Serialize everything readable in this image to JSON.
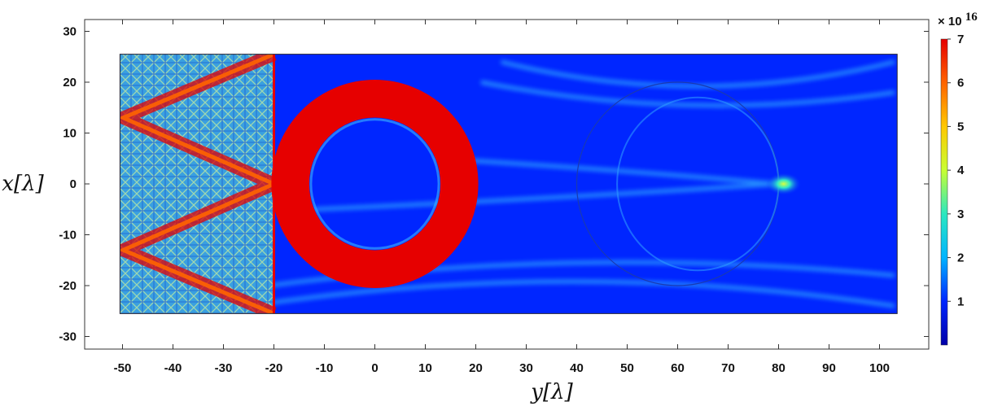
{
  "chart_data": {
    "type": "heatmap",
    "title": "",
    "xlabel": "y[λ]",
    "ylabel": "x[λ]",
    "xlim": [
      -55,
      108
    ],
    "ylim": [
      -33,
      33
    ],
    "x_ticks": [
      -50,
      -40,
      -30,
      -20,
      -10,
      0,
      10,
      20,
      30,
      40,
      50,
      60,
      70,
      80,
      90,
      100
    ],
    "y_ticks": [
      -30,
      -20,
      -10,
      0,
      10,
      20,
      30
    ],
    "domain": {
      "y_range": [
        -50.5,
        103.5
      ],
      "x_range": [
        -25.5,
        25.5
      ]
    },
    "colormap": [
      "#0000a8",
      "#0026ff",
      "#00b4ff",
      "#2ce8c0",
      "#c8ff32",
      "#ffc800",
      "#ff6400",
      "#e60000"
    ],
    "colorbar": {
      "multiplier_base": "× 10",
      "multiplier_exponent": "16",
      "ticks": [
        1,
        2,
        3,
        4,
        5,
        6,
        7
      ],
      "range": [
        0,
        7
      ]
    },
    "structures": [
      {
        "name": "lens-region",
        "type": "rect",
        "y_range": [
          -50.5,
          -20
        ],
        "x_range": [
          -25.5,
          25.5
        ],
        "level": "mixed-high"
      },
      {
        "name": "red-ring",
        "type": "annulus",
        "center_y": 0,
        "center_x": 0,
        "outer_radius": 20.5,
        "inner_radius": 13,
        "level": 7
      },
      {
        "name": "ghost-circle",
        "type": "circle",
        "center_y": 60,
        "center_x": 0,
        "radius": 20,
        "level": "outline"
      },
      {
        "name": "focal-spot",
        "type": "spot",
        "y": 81,
        "x": 0,
        "level": 4
      }
    ]
  }
}
